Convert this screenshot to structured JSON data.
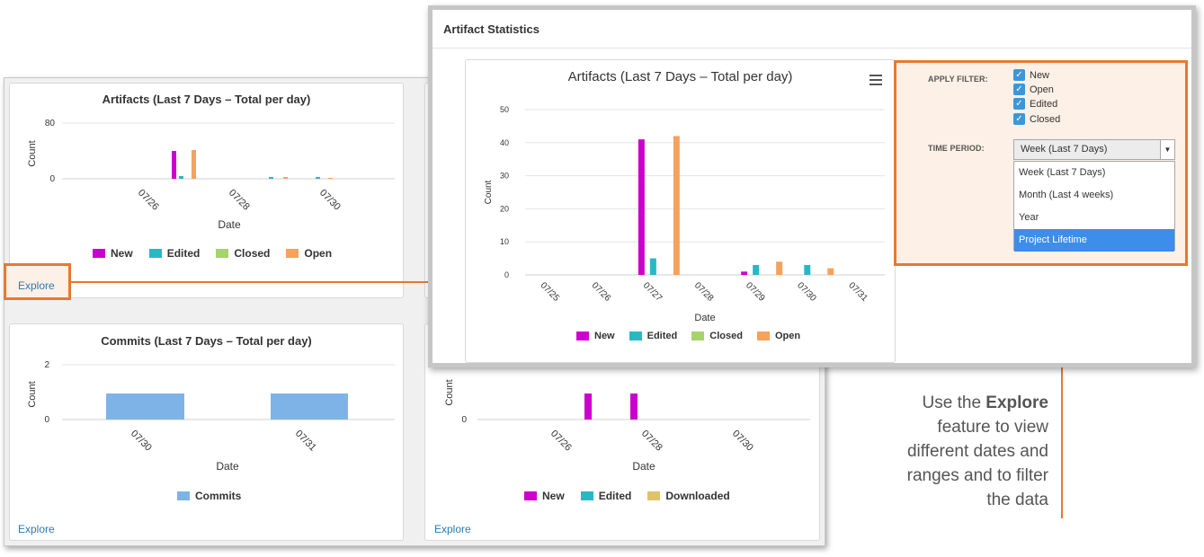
{
  "dashboard": {
    "artifacts_panel": {
      "title": "Artifacts (Last 7 Days – Total per day)",
      "ylabel": "Count",
      "xlabel": "Date",
      "yticks": [
        "80",
        "0"
      ],
      "xticks": [
        "07/26",
        "07/28",
        "07/30"
      ],
      "legend": [
        "New",
        "Edited",
        "Closed",
        "Open"
      ],
      "explore": "Explore"
    },
    "commits_panel": {
      "title": "Commits (Last 7 Days – Total per day)",
      "ylabel": "Count",
      "xlabel": "Date",
      "yticks": [
        "2",
        "0"
      ],
      "xticks": [
        "07/30",
        "07/31"
      ],
      "legend": [
        "Commits"
      ],
      "explore": "Explore"
    },
    "docs_panel": {
      "ylabel": "Count",
      "xlabel": "Date",
      "yticks": [
        "0"
      ],
      "xticks": [
        "07/26",
        "07/28",
        "07/30"
      ],
      "legend": [
        "New",
        "Edited",
        "Downloaded"
      ],
      "explore": "Explore"
    }
  },
  "modal": {
    "title": "Artifact Statistics",
    "chart_title": "Artifacts (Last 7 Days – Total per day)",
    "menu_icon": "hamburger-menu-icon",
    "filter": {
      "apply_label": "APPLY FILTER:",
      "checkboxes": [
        "New",
        "Open",
        "Edited",
        "Closed"
      ],
      "time_label": "TIME PERIOD:",
      "selected": "Week (Last 7 Days)",
      "options": [
        "Week (Last 7 Days)",
        "Month (Last 4 weeks)",
        "Year",
        "Project Lifetime"
      ],
      "highlighted": "Project Lifetime"
    }
  },
  "annotation": {
    "prefix": "Use the ",
    "bold": "Explore",
    "rest_1": "feature to view",
    "rest_2": "different dates and",
    "rest_3": "ranges and to filter",
    "rest_4": "the data"
  },
  "colors": {
    "new": "#cc00cc",
    "edited": "#2ab7c4",
    "closed": "#a6d36b",
    "open": "#f5a25d",
    "commits": "#7eb3e8",
    "downloaded": "#e0c26a",
    "accent": "#e87830"
  },
  "chart_data": [
    {
      "type": "bar",
      "title": "Artifacts (Last 7 Days – Total per day)",
      "xlabel": "Date",
      "ylabel": "Count",
      "categories": [
        "07/25",
        "07/26",
        "07/27",
        "07/28",
        "07/29",
        "07/30",
        "07/31"
      ],
      "ylim": [
        0,
        50
      ],
      "yticks": [
        0,
        10,
        20,
        30,
        40,
        50
      ],
      "grid": true,
      "legend_position": "bottom",
      "series": [
        {
          "name": "New",
          "values": [
            0,
            0,
            41,
            0,
            1,
            0,
            0
          ]
        },
        {
          "name": "Edited",
          "values": [
            0,
            0,
            5,
            0,
            3,
            3,
            0
          ]
        },
        {
          "name": "Closed",
          "values": [
            0,
            0,
            0,
            0,
            0,
            0,
            0
          ]
        },
        {
          "name": "Open",
          "values": [
            0,
            0,
            42,
            0,
            4,
            2,
            0
          ]
        }
      ]
    },
    {
      "type": "bar",
      "title": "Artifacts (Last 7 Days – Total per day)",
      "xlabel": "Date",
      "ylabel": "Count",
      "categories": [
        "07/25",
        "07/26",
        "07/27",
        "07/28",
        "07/29",
        "07/30",
        "07/31"
      ],
      "ylim": [
        0,
        80
      ],
      "grid": true,
      "legend_position": "bottom",
      "series": [
        {
          "name": "New",
          "values": [
            0,
            0,
            41,
            0,
            1,
            0,
            0
          ]
        },
        {
          "name": "Edited",
          "values": [
            0,
            0,
            5,
            0,
            3,
            3,
            0
          ]
        },
        {
          "name": "Closed",
          "values": [
            0,
            0,
            0,
            0,
            0,
            0,
            0
          ]
        },
        {
          "name": "Open",
          "values": [
            0,
            0,
            42,
            0,
            4,
            2,
            0
          ]
        }
      ]
    },
    {
      "type": "bar",
      "title": "Commits (Last 7 Days – Total per day)",
      "xlabel": "Date",
      "ylabel": "Count",
      "categories": [
        "07/30",
        "07/31"
      ],
      "ylim": [
        0,
        2
      ],
      "grid": true,
      "legend_position": "bottom",
      "series": [
        {
          "name": "Commits",
          "values": [
            1,
            1
          ]
        }
      ]
    }
  ]
}
